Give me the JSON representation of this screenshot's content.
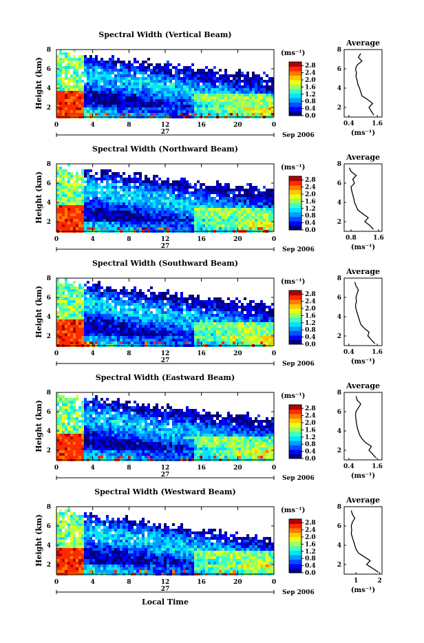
{
  "figure": {
    "bottom_label": "Local Time",
    "date_label": "Sep 2006",
    "day_label": "27"
  },
  "chart_data": [
    {
      "type": "heatmap",
      "title": "Spectral Width (Vertical Beam)",
      "ylabel": "Height (km)",
      "xlabel": "Local Time",
      "x_ticks": [
        "0",
        "4",
        "8",
        "12",
        "16",
        "20",
        "0"
      ],
      "y_ticks": [
        "2",
        "4",
        "6",
        "8"
      ],
      "xlim": [
        0,
        24
      ],
      "ylim": [
        1,
        8
      ],
      "colorbar": {
        "unit": "(ms⁻¹)",
        "ticks": [
          "0.0",
          "0.4",
          "0.8",
          "1.2",
          "1.6",
          "2.0",
          "2.4",
          "2.8"
        ]
      },
      "average": {
        "title": "Average",
        "xlabel": "(ms⁻¹)",
        "x_ticks": [
          "0.4",
          "1.6"
        ],
        "xlim": [
          0.2,
          1.8
        ],
        "height": [
          1.2,
          1.6,
          2.0,
          2.4,
          2.8,
          3.2,
          3.6,
          4.0,
          4.4,
          4.8,
          5.2,
          5.6,
          6.0,
          6.4,
          6.8,
          7.2,
          7.6
        ],
        "width": [
          1.45,
          1.35,
          1.25,
          1.4,
          1.2,
          0.95,
          0.9,
          0.85,
          0.78,
          0.75,
          0.7,
          0.72,
          0.68,
          0.75,
          0.95,
          0.8,
          0.9
        ]
      }
    },
    {
      "type": "heatmap",
      "title": "Spectral Width (Northward Beam)",
      "ylabel": "Height (km)",
      "xlabel": "Local Time",
      "x_ticks": [
        "0",
        "4",
        "8",
        "12",
        "16",
        "20",
        "0"
      ],
      "y_ticks": [
        "2",
        "4",
        "6",
        "8"
      ],
      "xlim": [
        0,
        24
      ],
      "ylim": [
        1,
        8
      ],
      "colorbar": {
        "unit": "(ms⁻¹)",
        "ticks": [
          "0.0",
          "0.4",
          "0.8",
          "1.2",
          "1.6",
          "2.0",
          "2.4",
          "2.8"
        ]
      },
      "average": {
        "title": "Average",
        "xlabel": "(ms⁻¹)",
        "x_ticks": [
          "0.8",
          "1.6"
        ],
        "xlim": [
          0.6,
          1.7
        ],
        "height": [
          1.2,
          1.6,
          2.0,
          2.4,
          2.8,
          3.2,
          3.6,
          4.0,
          4.4,
          4.8,
          5.2,
          5.6,
          6.0,
          6.4,
          6.8,
          7.2,
          7.6
        ],
        "width": [
          1.45,
          1.35,
          1.2,
          1.3,
          1.15,
          1.0,
          0.95,
          0.9,
          0.88,
          0.85,
          0.82,
          0.8,
          0.9,
          0.85,
          0.95,
          0.8,
          0.75
        ]
      }
    },
    {
      "type": "heatmap",
      "title": "Spectral Width (Southward Beam)",
      "ylabel": "Height (km)",
      "xlabel": "Local Time",
      "x_ticks": [
        "0",
        "4",
        "8",
        "12",
        "16",
        "20",
        "0"
      ],
      "y_ticks": [
        "2",
        "4",
        "6",
        "8"
      ],
      "xlim": [
        0,
        24
      ],
      "ylim": [
        1,
        8
      ],
      "colorbar": {
        "unit": "(ms⁻¹)",
        "ticks": [
          "0.0",
          "0.4",
          "0.8",
          "1.2",
          "1.6",
          "2.0",
          "2.4",
          "2.8"
        ]
      },
      "average": {
        "title": "Average",
        "xlabel": "(ms⁻¹)",
        "x_ticks": [
          "0.4",
          "1.6"
        ],
        "xlim": [
          0.2,
          1.8
        ],
        "height": [
          1.2,
          1.6,
          2.0,
          2.4,
          2.8,
          3.2,
          3.6,
          4.0,
          4.4,
          4.8,
          5.2,
          5.6,
          6.0,
          6.4,
          6.8,
          7.2,
          7.6
        ],
        "width": [
          1.5,
          1.35,
          1.2,
          1.25,
          1.05,
          0.9,
          0.85,
          0.8,
          0.75,
          0.7,
          0.68,
          0.72,
          0.7,
          0.75,
          0.8,
          0.7,
          0.65
        ]
      }
    },
    {
      "type": "heatmap",
      "title": "Spectral Width (Eastward Beam)",
      "ylabel": "Height (km)",
      "xlabel": "Local Time",
      "x_ticks": [
        "0",
        "4",
        "8",
        "12",
        "16",
        "20",
        "0"
      ],
      "y_ticks": [
        "2",
        "4",
        "6",
        "8"
      ],
      "xlim": [
        0,
        24
      ],
      "ylim": [
        1,
        8
      ],
      "colorbar": {
        "unit": "(ms⁻¹)",
        "ticks": [
          "0.0",
          "0.4",
          "0.8",
          "1.2",
          "1.6",
          "2.0",
          "2.4",
          "2.8"
        ]
      },
      "average": {
        "title": "Average",
        "xlabel": "(ms⁻¹)",
        "x_ticks": [
          "0.4",
          "1.6"
        ],
        "xlim": [
          0.2,
          1.8
        ],
        "height": [
          1.2,
          1.6,
          2.0,
          2.4,
          2.8,
          3.2,
          3.6,
          4.0,
          4.4,
          4.8,
          5.2,
          5.6,
          6.0,
          6.4,
          6.8,
          7.2,
          7.6
        ],
        "width": [
          1.55,
          1.4,
          1.25,
          1.35,
          1.1,
          0.95,
          0.85,
          0.8,
          0.75,
          0.72,
          0.7,
          0.68,
          0.7,
          0.8,
          0.9,
          0.75,
          0.7
        ]
      }
    },
    {
      "type": "heatmap",
      "title": "Spectral Width (Westward Beam)",
      "ylabel": "Height (km)",
      "xlabel": "Local Time",
      "x_ticks": [
        "0",
        "4",
        "8",
        "12",
        "16",
        "20",
        "0"
      ],
      "y_ticks": [
        "2",
        "4",
        "6",
        "8"
      ],
      "xlim": [
        0,
        24
      ],
      "ylim": [
        1,
        8
      ],
      "colorbar": {
        "unit": "(ms⁻¹)",
        "ticks": [
          "0.0",
          "0.4",
          "0.8",
          "1.2",
          "1.6",
          "2.0",
          "2.4",
          "2.8"
        ]
      },
      "average": {
        "title": "Average",
        "xlabel": "(ms⁻¹)",
        "x_ticks": [
          "1",
          "2"
        ],
        "xlim": [
          0.5,
          2.1
        ],
        "height": [
          1.2,
          1.6,
          2.0,
          2.4,
          2.8,
          3.2,
          3.6,
          4.0,
          4.4,
          4.8,
          5.2,
          5.6,
          6.0,
          6.4,
          6.8,
          7.2,
          7.6
        ],
        "width": [
          1.95,
          1.7,
          1.45,
          1.6,
          1.35,
          1.1,
          1.0,
          0.95,
          0.9,
          0.85,
          0.8,
          0.82,
          0.8,
          0.85,
          0.95,
          0.85,
          0.8
        ]
      }
    }
  ],
  "colors": {
    "scale": [
      "#00007f",
      "#0000ff",
      "#0050ff",
      "#009cff",
      "#00e6ff",
      "#40ffbf",
      "#9cff60",
      "#e6ff18",
      "#ffc800",
      "#ff7a00",
      "#ff2a00",
      "#b20000"
    ],
    "background": "#ffffff",
    "axis": "#000000"
  }
}
